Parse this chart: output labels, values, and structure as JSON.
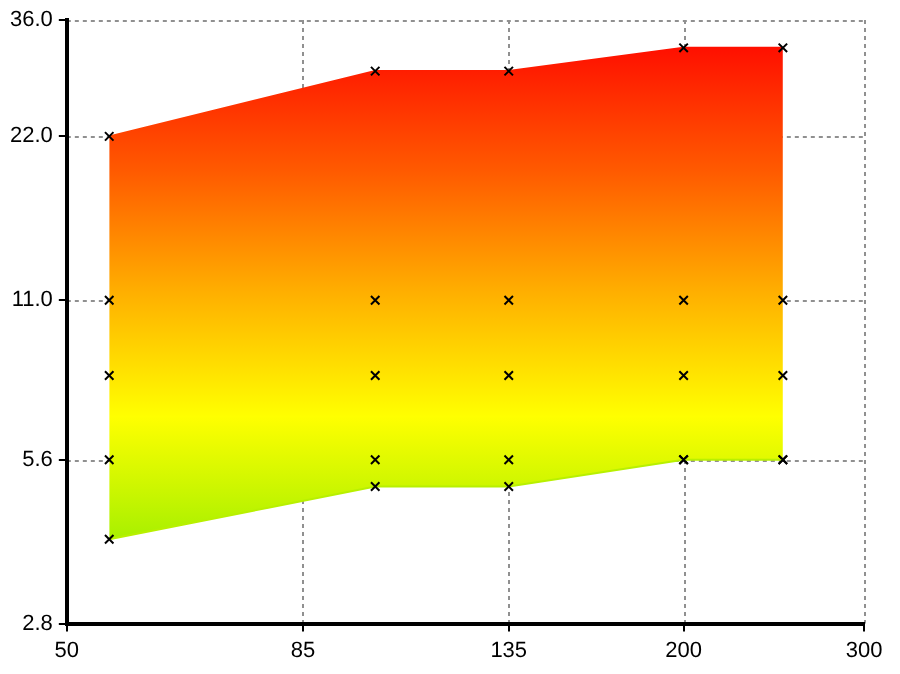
{
  "chart_data": {
    "type": "area",
    "x": [
      55,
      100,
      135,
      200,
      250
    ],
    "series": [
      {
        "values": [
          22,
          29,
          29,
          32,
          32
        ],
        "colors": [
          "#ff1000",
          "#ff5a00",
          "#ffb000",
          "#ffff00",
          "#a8f000"
        ],
        "marker": "cross"
      },
      {
        "type": "line",
        "color": "#b8f000",
        "values": [
          4,
          5,
          5,
          5.6,
          5.6
        ],
        "marker": "cross"
      },
      {
        "type": "scatter",
        "color": "#000000",
        "values": [
          11,
          11,
          11,
          11,
          11
        ],
        "marker": "cross"
      },
      {
        "type": "scatter",
        "color": "#000000",
        "values": [
          8,
          8,
          8,
          8,
          8
        ],
        "marker": "cross"
      },
      {
        "type": "scatter",
        "color": "#000000",
        "values": [
          5.6,
          5.6,
          5.6,
          5.6,
          5.6
        ],
        "marker": "cross"
      }
    ],
    "log": "xy",
    "xlim": [
      50,
      300
    ],
    "xticks": [
      50,
      85,
      135,
      200,
      300
    ],
    "ylim": [
      2.8,
      36
    ],
    "yticks": [
      2.8,
      5.6,
      {
        "value": 11,
        "label": "11.0"
      },
      {
        "value": 22,
        "label": "22.0"
      },
      {
        "value": 36,
        "label": "36.0"
      }
    ],
    "grid": true,
    "legend": false
  }
}
